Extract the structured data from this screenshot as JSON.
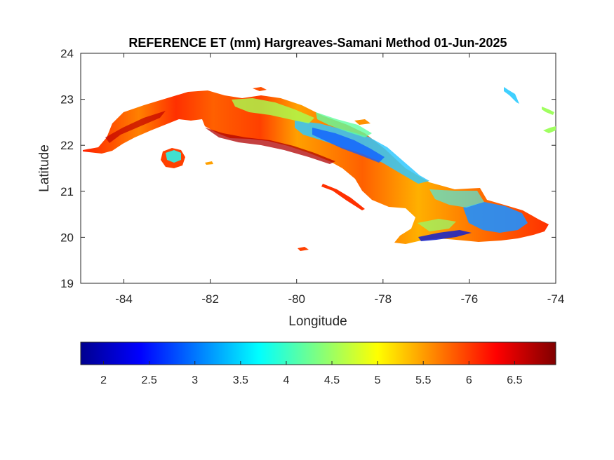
{
  "map": {
    "title": "REFERENCE ET (mm) Hargreaves-Samani Method  01-Jun-2025",
    "xlabel": "Longitude",
    "ylabel": "Latitude",
    "xlim": [
      -85,
      -74
    ],
    "ylim": [
      19,
      24
    ],
    "x_ticks": [
      -84,
      -82,
      -80,
      -78,
      -76,
      -74
    ],
    "y_ticks": [
      19,
      20,
      21,
      22,
      23,
      24
    ],
    "grid": false,
    "colormap": "jet",
    "color_range": [
      1.75,
      6.95
    ],
    "colorbar": {
      "orientation": "horizontal",
      "placement": "below",
      "ticks": [
        2,
        2.5,
        3,
        3.5,
        4,
        4.5,
        5,
        5.5,
        6,
        6.5
      ]
    },
    "colors": {
      "low": "#00008f",
      "mid": "#ffff00",
      "high": "#800000"
    }
  }
}
